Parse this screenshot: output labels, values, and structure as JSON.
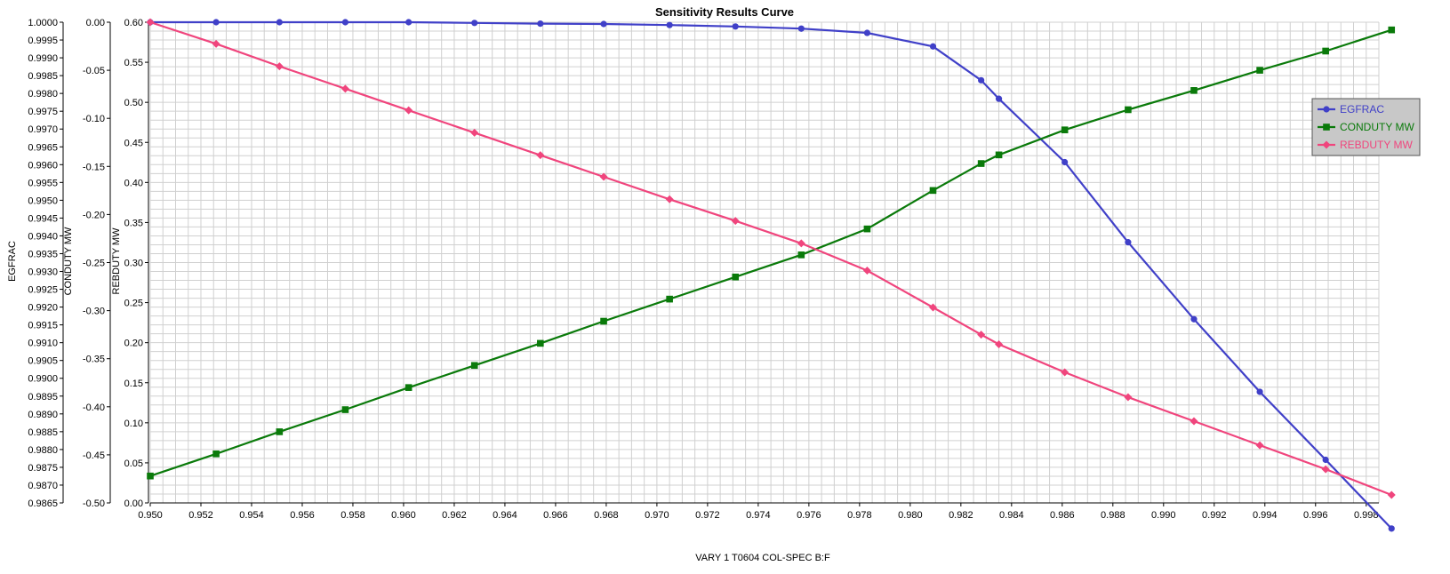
{
  "chart_data": {
    "type": "line",
    "title": "Sensitivity Results Curve",
    "xlabel": "VARY   1 T0604 COL-SPEC B:F",
    "xlim": [
      0.95,
      0.9985
    ],
    "x_ticks": [
      "0.950",
      "0.952",
      "0.954",
      "0.956",
      "0.958",
      "0.960",
      "0.962",
      "0.964",
      "0.966",
      "0.968",
      "0.970",
      "0.972",
      "0.974",
      "0.976",
      "0.978",
      "0.980",
      "0.982",
      "0.984",
      "0.986",
      "0.988",
      "0.990",
      "0.992",
      "0.994",
      "0.996",
      "0.998"
    ],
    "grid": true,
    "legend_position": "right",
    "y_axes": [
      {
        "label": "EGFRAC",
        "lim": [
          0.9865,
          1.0
        ],
        "ticks": [
          "1.0000",
          "0.9995",
          "0.9990",
          "0.9985",
          "0.9980",
          "0.9975",
          "0.9970",
          "0.9965",
          "0.9960",
          "0.9955",
          "0.9950",
          "0.9945",
          "0.9940",
          "0.9935",
          "0.9930",
          "0.9925",
          "0.9920",
          "0.9915",
          "0.9910",
          "0.9905",
          "0.9900",
          "0.9895",
          "0.9890",
          "0.9885",
          "0.9880",
          "0.9875",
          "0.9870",
          "0.9865"
        ]
      },
      {
        "label": "CONDUTY MW",
        "lim": [
          -0.5,
          0.0
        ],
        "ticks": [
          "0.00",
          "-0.05",
          "-0.10",
          "-0.15",
          "-0.20",
          "-0.25",
          "-0.30",
          "-0.35",
          "-0.40",
          "-0.45",
          "-0.50"
        ]
      },
      {
        "label": "REBDUTY MW",
        "lim": [
          0.0,
          0.6
        ],
        "ticks": [
          "0.60",
          "0.55",
          "0.50",
          "0.45",
          "0.40",
          "0.35",
          "0.30",
          "0.25",
          "0.20",
          "0.15",
          "0.10",
          "0.05",
          "0.00"
        ]
      }
    ],
    "series": [
      {
        "name": "EGFRAC",
        "axis": 0,
        "color": "#4040C8",
        "marker": "circle",
        "x": [
          0.95,
          0.9526,
          0.9551,
          0.9577,
          0.9602,
          0.9628,
          0.9654,
          0.9679,
          0.9705,
          0.9731,
          0.9757,
          0.9783,
          0.9809,
          0.9828,
          0.9835,
          0.9861,
          0.9886,
          0.9912,
          0.9938,
          0.9964,
          0.999
        ],
        "values": [
          1.0,
          1.0,
          1.0,
          1.0,
          1.0,
          0.99998,
          0.99996,
          0.99995,
          0.99992,
          0.99988,
          0.99982,
          0.9997,
          0.99932,
          0.99837,
          0.99785,
          0.99607,
          0.99382,
          0.99166,
          0.98962,
          0.98771,
          0.98578
        ]
      },
      {
        "name": "CONDUTY MW",
        "axis": 1,
        "color": "#0A7A0A",
        "marker": "square",
        "x": [
          0.95,
          0.9526,
          0.9551,
          0.9577,
          0.9602,
          0.9628,
          0.9654,
          0.9679,
          0.9705,
          0.9731,
          0.9757,
          0.9783,
          0.9809,
          0.9828,
          0.9835,
          0.9861,
          0.9886,
          0.9912,
          0.9938,
          0.9964,
          0.999
        ],
        "values": [
          -0.472,
          -0.449,
          -0.426,
          -0.403,
          -0.38,
          -0.357,
          -0.334,
          -0.311,
          -0.288,
          -0.265,
          -0.242,
          -0.215,
          -0.175,
          -0.147,
          -0.138,
          -0.112,
          -0.091,
          -0.071,
          -0.05,
          -0.03,
          -0.008
        ]
      },
      {
        "name": "REBDUTY MW",
        "axis": 2,
        "color": "#F0457D",
        "marker": "diamond",
        "x": [
          0.95,
          0.9526,
          0.9551,
          0.9577,
          0.9602,
          0.9628,
          0.9654,
          0.9679,
          0.9705,
          0.9731,
          0.9757,
          0.9783,
          0.9809,
          0.9828,
          0.9835,
          0.9861,
          0.9886,
          0.9912,
          0.9938,
          0.9964,
          0.999
        ],
        "values": [
          0.6,
          0.573,
          0.545,
          0.517,
          0.49,
          0.462,
          0.434,
          0.407,
          0.379,
          0.352,
          0.324,
          0.29,
          0.244,
          0.21,
          0.198,
          0.163,
          0.132,
          0.102,
          0.072,
          0.042,
          0.01
        ]
      }
    ]
  }
}
